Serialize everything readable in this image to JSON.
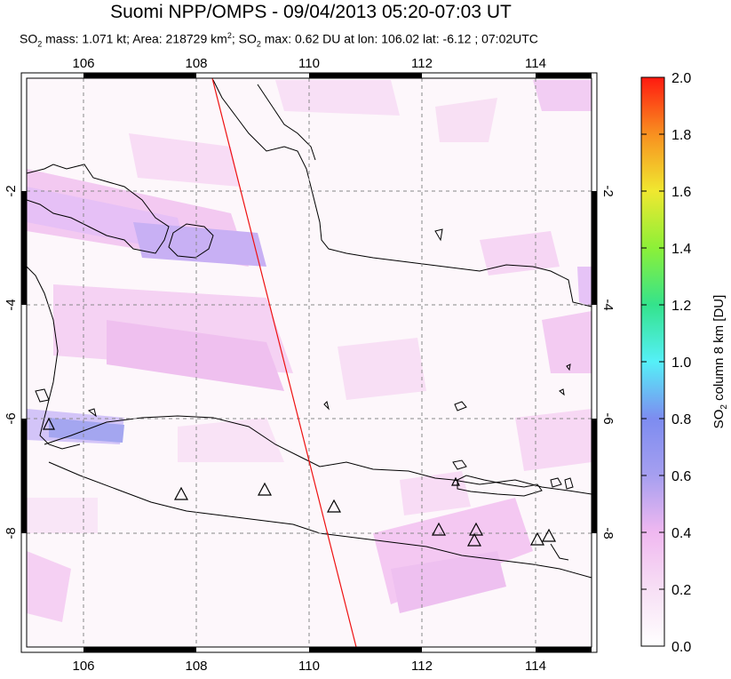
{
  "title": "Suomi NPP/OMPS - 09/04/2013 05:20-07:03 UT",
  "subtitle_parts": {
    "pre": "SO",
    "sub1": "2",
    "mid1": " mass: 1.071 kt; Area: 218729 km",
    "sup": "2",
    "mid2": "; SO",
    "sub2": "2",
    "post": " max: 0.62 DU at lon: 106.02 lat: -6.12 ; 07:02UTC"
  },
  "map": {
    "lon_ticks": [
      "106",
      "108",
      "110",
      "112",
      "114"
    ],
    "lat_ticks_left": [
      "-2",
      "-4",
      "-6",
      "-8"
    ],
    "lat_ticks_right": [
      "-2",
      "-4",
      "-6",
      "-8"
    ],
    "lon_range": [
      105,
      115
    ],
    "lat_range": [
      -10.2,
      -0.2
    ],
    "grid": "dashed",
    "volcano_count": 10
  },
  "colorbar": {
    "label_pre": "SO",
    "label_sub": "2",
    "label_post": " column 8 km [DU]",
    "ticks": [
      "2.0",
      "1.8",
      "1.6",
      "1.4",
      "1.2",
      "1.0",
      "0.8",
      "0.6",
      "0.4",
      "0.2",
      "0.0"
    ],
    "range": [
      0,
      2
    ],
    "colors": [
      "#ffffff",
      "#f7c6f3",
      "#b4a0f0",
      "#7070e8",
      "#46e8f8",
      "#30e070",
      "#c8f030",
      "#f8c020",
      "#f87020",
      "#ff1010"
    ]
  }
}
